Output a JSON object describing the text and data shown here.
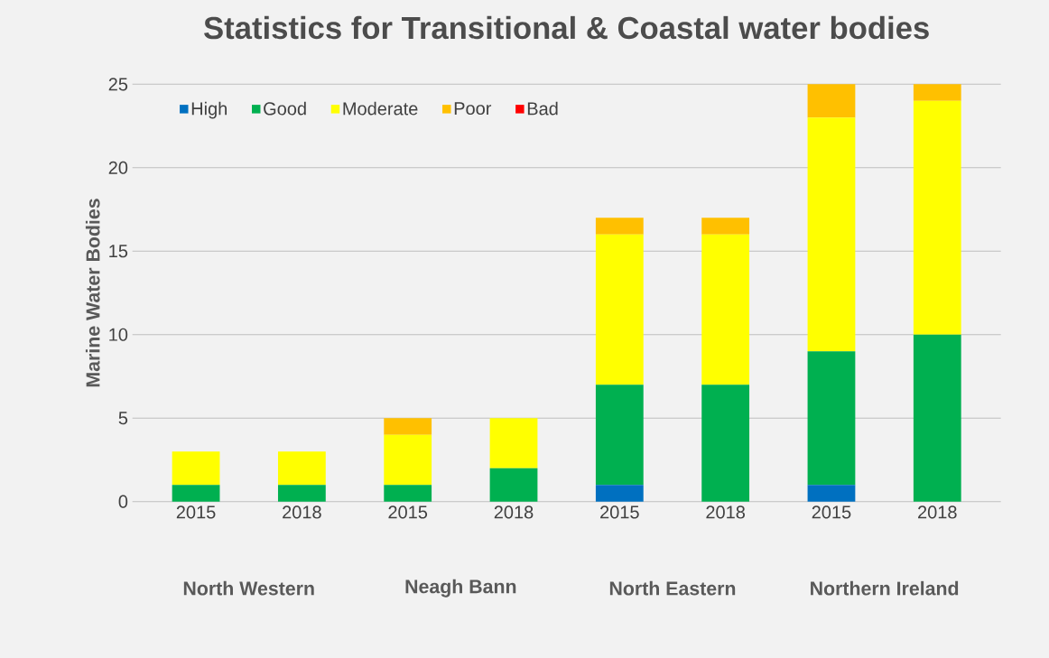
{
  "chart_data": {
    "type": "bar",
    "stacked": true,
    "title": "Statistics for Transitional & Coastal water bodies",
    "ylabel": "Marine Water Bodies",
    "categories": [
      "2015",
      "2018",
      "2015",
      "2018",
      "2015",
      "2018",
      "2015",
      "2018"
    ],
    "annotations": [
      "North Western",
      "Neagh Bann",
      "North Eastern",
      "Northern Ireland"
    ],
    "series": [
      {
        "name": "High",
        "color": "#0070c0",
        "values": [
          0,
          0,
          0,
          0,
          1,
          0,
          1,
          0
        ]
      },
      {
        "name": "Good",
        "color": "#00b050",
        "values": [
          1,
          1,
          1,
          2,
          6,
          7,
          8,
          10
        ]
      },
      {
        "name": "Moderate",
        "color": "#ffff00",
        "values": [
          2,
          2,
          3,
          3,
          9,
          9,
          14,
          14
        ]
      },
      {
        "name": "Poor",
        "color": "#ffc000",
        "values": [
          0,
          0,
          1,
          0,
          1,
          1,
          2,
          1
        ]
      },
      {
        "name": "Bad",
        "color": "#ff0000",
        "values": [
          0,
          0,
          0,
          0,
          0,
          0,
          0,
          0
        ]
      }
    ],
    "ylim": [
      0,
      25
    ],
    "yticks": [
      0,
      5,
      10,
      15,
      20,
      25
    ],
    "grid": "y",
    "legend": "top left"
  }
}
